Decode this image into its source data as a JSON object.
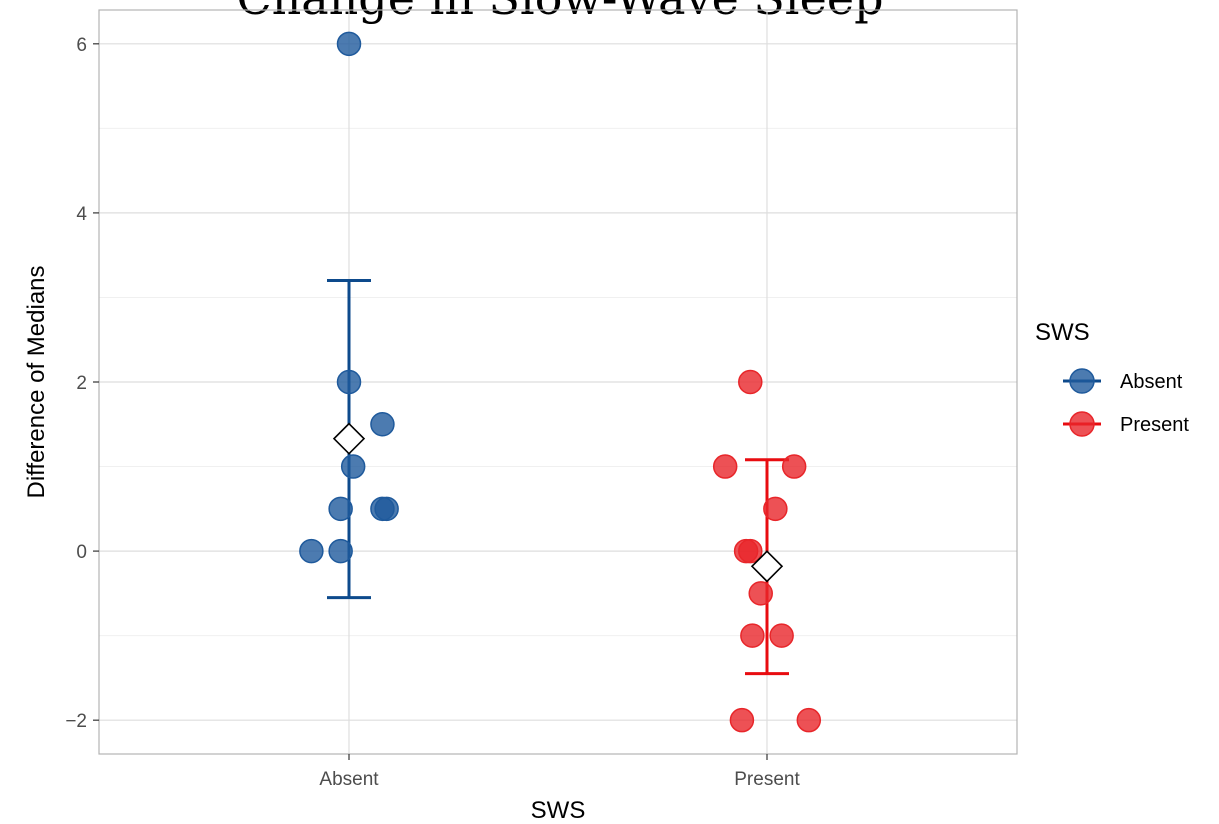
{
  "title_fragment": "Change in Slow-Wave Sleep",
  "chart_data": {
    "type": "scatter",
    "title": "Change in Slow-Wave Sleep",
    "xlabel": "SWS",
    "ylabel": "Difference of Medians",
    "categories": [
      "Absent",
      "Present"
    ],
    "ylim": [
      -2.4,
      6.4
    ],
    "y_ticks": [
      -2,
      0,
      2,
      4,
      6
    ],
    "y_tick_labels": [
      "−2",
      "0",
      "2",
      "4",
      "6"
    ],
    "grid": true,
    "legend": {
      "title": "SWS",
      "position": "right"
    },
    "colors": {
      "Absent": "#1f5a9c",
      "Present": "#e8262a",
      "Absent_bar": "#0d4a8c",
      "Present_bar": "#e80c10"
    },
    "series": [
      {
        "name": "Absent",
        "points": [
          {
            "x": -0.09,
            "y": 0
          },
          {
            "x": -0.02,
            "y": 0
          },
          {
            "x": -0.02,
            "y": 0.5
          },
          {
            "x": 0.08,
            "y": 0.5
          },
          {
            "x": 0.09,
            "y": 0.5
          },
          {
            "x": 0.01,
            "y": 1
          },
          {
            "x": 0.08,
            "y": 1.5
          },
          {
            "x": 0.0,
            "y": 2
          },
          {
            "x": 0.0,
            "y": 6
          }
        ],
        "mean": 1.33,
        "error_low": -0.55,
        "error_high": 3.2
      },
      {
        "name": "Present",
        "points": [
          {
            "x": -0.06,
            "y": -2
          },
          {
            "x": 0.1,
            "y": -2
          },
          {
            "x": -0.035,
            "y": -1
          },
          {
            "x": 0.035,
            "y": -1
          },
          {
            "x": -0.015,
            "y": -0.5
          },
          {
            "x": -0.05,
            "y": 0
          },
          {
            "x": -0.04,
            "y": 0
          },
          {
            "x": 0.02,
            "y": 0.5
          },
          {
            "x": -0.1,
            "y": 1
          },
          {
            "x": 0.065,
            "y": 1
          },
          {
            "x": -0.04,
            "y": 2
          }
        ],
        "mean": -0.18,
        "error_low": -1.45,
        "error_high": 1.08
      }
    ]
  }
}
